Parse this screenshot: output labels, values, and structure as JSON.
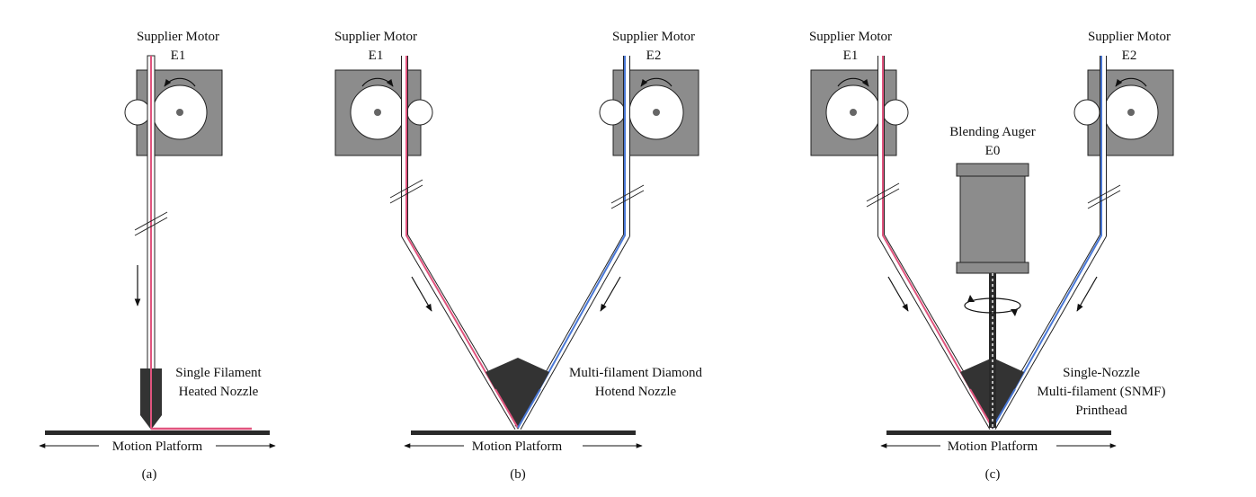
{
  "colors": {
    "motor_body": "#8c8c8c",
    "filament_red": "#e0547e",
    "filament_blue": "#4a78d6",
    "nozzle": "#333333",
    "platform": "#2a2a2a",
    "outline": "#222222"
  },
  "panels": [
    {
      "id": "a",
      "caption": "(a)",
      "motors": [
        {
          "title": "Supplier Motor",
          "id": "E1",
          "color": "red"
        }
      ],
      "nozzle_label": [
        "Single Filament",
        "Heated Nozzle"
      ],
      "platform_label": "Motion Platform"
    },
    {
      "id": "b",
      "caption": "(b)",
      "motors": [
        {
          "title": "Supplier Motor",
          "id": "E1",
          "color": "red"
        },
        {
          "title": "Supplier Motor",
          "id": "E2",
          "color": "blue"
        }
      ],
      "nozzle_label": [
        "Multi-filament Diamond",
        "Hotend Nozzle"
      ],
      "platform_label": "Motion Platform"
    },
    {
      "id": "c",
      "caption": "(c)",
      "motors": [
        {
          "title": "Supplier Motor",
          "id": "E1",
          "color": "red"
        },
        {
          "title": "Supplier Motor",
          "id": "E2",
          "color": "blue"
        }
      ],
      "auger": {
        "title": "Blending Auger",
        "id": "E0"
      },
      "nozzle_label": [
        "Single-Nozzle",
        "Multi-filament (SNMF)",
        "Printhead"
      ],
      "platform_label": "Motion Platform"
    }
  ]
}
